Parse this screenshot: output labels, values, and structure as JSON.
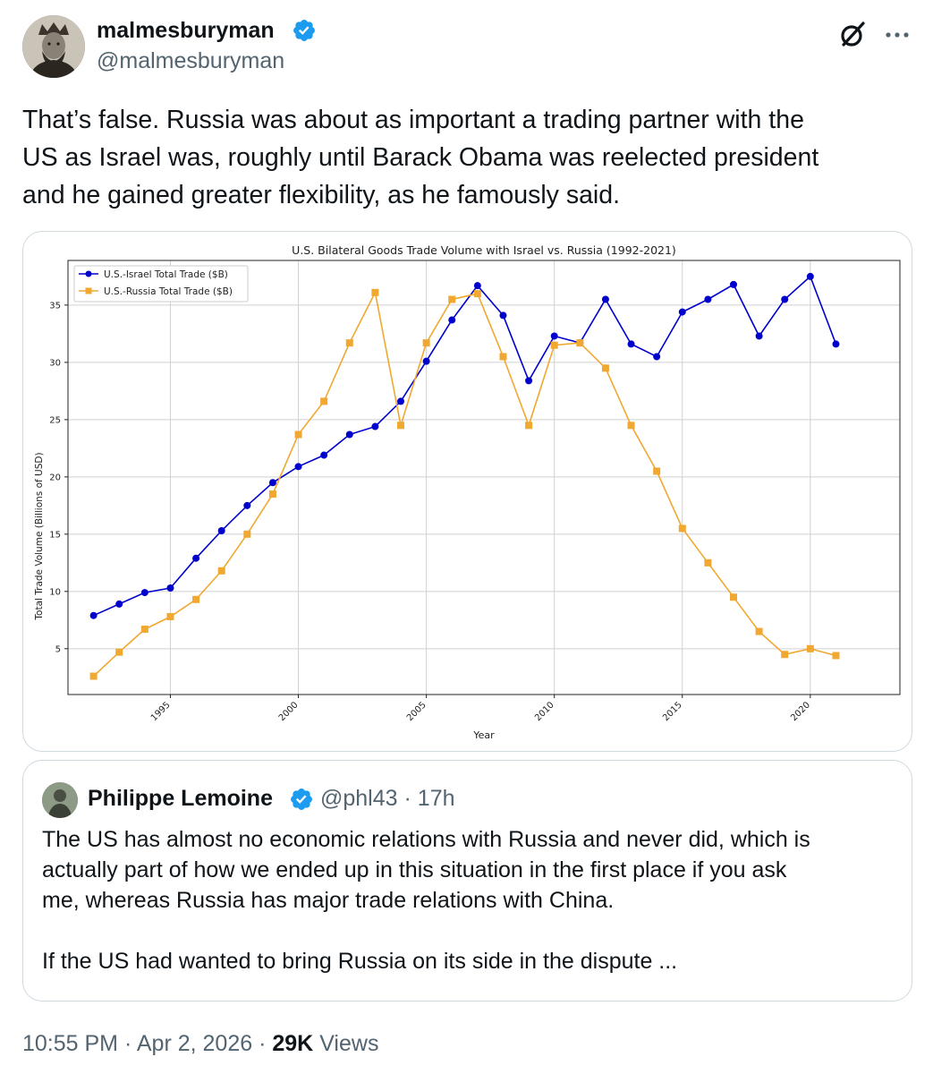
{
  "author": {
    "display_name": "malmesburyman",
    "handle": "@malmesburyman"
  },
  "tweet": {
    "text": "That’s false. Russia was about as important a trading partner with the\nUS as Israel was, roughly until Barack Obama was reelected president\nand he gained greater flexibility, as he famously said."
  },
  "quote": {
    "display_name": "Philippe Lemoine",
    "handle": "@phl43",
    "separator": "·",
    "time": "17h",
    "text": "The US has almost no economic relations with Russia and never did, which is\nactually part of how we ended up in this situation in the first place if you ask\nme, whereas Russia has major trade relations with China.\n\nIf the US had wanted to bring Russia on its side in the dispute ..."
  },
  "footer": {
    "time": "10:55 PM",
    "separator": "·",
    "date": "Apr 2, 2026",
    "views_count": "29K",
    "views_label": "Views"
  },
  "icons": {
    "verified": "verified-badge-icon",
    "grok": "grok-icon",
    "more": "more-options-icon"
  },
  "colors": {
    "verified": "#1d9bf0",
    "israel_series": "#0000cc",
    "russia_series": "#f0a830"
  },
  "chart_data": {
    "type": "line",
    "title": "U.S. Bilateral Goods Trade Volume with Israel vs. Russia (1992-2021)",
    "xlabel": "Year",
    "ylabel": "Total Trade Volume (Billions of USD)",
    "x": [
      1992,
      1993,
      1994,
      1995,
      1996,
      1997,
      1998,
      1999,
      2000,
      2001,
      2002,
      2003,
      2004,
      2005,
      2006,
      2007,
      2008,
      2009,
      2010,
      2011,
      2012,
      2013,
      2014,
      2015,
      2016,
      2017,
      2018,
      2019,
      2020,
      2021
    ],
    "xticks": [
      "1995",
      "2000",
      "2005",
      "2010",
      "2015",
      "2020"
    ],
    "yticks": [
      "5",
      "10",
      "15",
      "20",
      "25",
      "30",
      "35"
    ],
    "xlim": [
      1991,
      2023.5
    ],
    "ylim": [
      1,
      38.9
    ],
    "grid": true,
    "legend_position": "top-left",
    "series": [
      {
        "name": "U.S.-Israel Total Trade ($B)",
        "color": "#0000cc",
        "marker": "circle",
        "values": [
          7.9,
          8.9,
          9.9,
          10.3,
          12.9,
          15.3,
          17.5,
          19.5,
          20.9,
          21.9,
          23.7,
          24.4,
          26.6,
          30.1,
          33.7,
          36.7,
          34.1,
          28.4,
          32.3,
          31.7,
          35.5,
          31.6,
          30.5,
          34.4,
          35.5,
          36.8,
          32.3,
          35.5,
          37.5,
          31.6
        ]
      },
      {
        "name": "U.S.-Russia Total Trade ($B)",
        "color": "#f0a830",
        "marker": "square",
        "values": [
          2.6,
          4.7,
          6.7,
          7.8,
          9.3,
          11.8,
          15.0,
          18.5,
          23.7,
          26.6,
          31.7,
          36.1,
          24.5,
          31.7,
          35.5,
          36.0,
          30.5,
          24.5,
          31.5,
          31.7,
          29.5,
          24.5,
          20.5,
          15.5,
          12.5,
          9.5,
          6.5,
          4.5,
          5.0,
          4.4
        ]
      }
    ]
  }
}
